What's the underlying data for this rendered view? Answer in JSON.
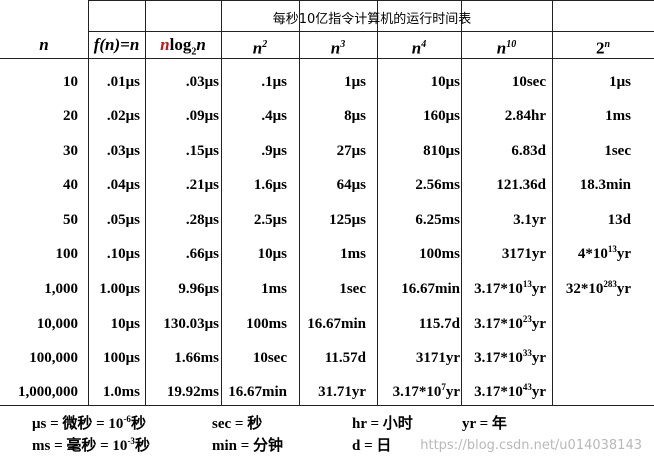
{
  "title": "每秒10亿指令计算机的运行时间表",
  "headers": {
    "n": "n",
    "f_prefix": "f(n)=n",
    "nlog_n1": "n",
    "nlog_mid": "log",
    "nlog_sub": "2",
    "nlog_n2": "n",
    "n2_base": "n",
    "n2_exp": "2",
    "n3_base": "n",
    "n3_exp": "3",
    "n4_base": "n",
    "n4_exp": "4",
    "n10_base": "n",
    "n10_exp": "10",
    "exp_base": "2",
    "exp_exp": "n"
  },
  "rows": [
    {
      "n": "10",
      "c1": ".01μs",
      "c2": ".03μs",
      "c3": ".1μs",
      "c4": "1μs",
      "c5": "10μs",
      "c6": "10sec",
      "c7": "1μs"
    },
    {
      "n": "20",
      "c1": ".02μs",
      "c2": ".09μs",
      "c3": ".4μs",
      "c4": "8μs",
      "c5": "160μs",
      "c6": "2.84hr",
      "c7": "1ms"
    },
    {
      "n": "30",
      "c1": ".03μs",
      "c2": ".15μs",
      "c3": ".9μs",
      "c4": "27μs",
      "c5": "810μs",
      "c6": "6.83d",
      "c7": "1sec"
    },
    {
      "n": "40",
      "c1": ".04μs",
      "c2": ".21μs",
      "c3": "1.6μs",
      "c4": "64μs",
      "c5": "2.56ms",
      "c6": "121.36d",
      "c7": "18.3min"
    },
    {
      "n": "50",
      "c1": ".05μs",
      "c2": ".28μs",
      "c3": "2.5μs",
      "c4": "125μs",
      "c5": "6.25ms",
      "c6": "3.1yr",
      "c7": "13d"
    },
    {
      "n": "100",
      "c1": ".10μs",
      "c2": ".66μs",
      "c3": "10μs",
      "c4": "1ms",
      "c5": "100ms",
      "c6": "3171yr",
      "c7": {
        "pre": "4*10",
        "sup": "13",
        "post": "yr"
      }
    },
    {
      "n": "1,000",
      "c1": "1.00μs",
      "c2": "9.96μs",
      "c3": "1ms",
      "c4": "1sec",
      "c5": "16.67min",
      "c6": {
        "pre": "3.17*10",
        "sup": "13",
        "post": "yr"
      },
      "c7": {
        "pre": "32*10",
        "sup": "283",
        "post": "yr"
      }
    },
    {
      "n": "10,000",
      "c1": "10μs",
      "c2": "130.03μs",
      "c3": "100ms",
      "c4": "16.67min",
      "c5": "115.7d",
      "c6": {
        "pre": "3.17*10",
        "sup": "23",
        "post": "yr"
      },
      "c7": ""
    },
    {
      "n": "100,000",
      "c1": "100μs",
      "c2": "1.66ms",
      "c3": "10sec",
      "c4": "11.57d",
      "c5": "3171yr",
      "c6": {
        "pre": "3.17*10",
        "sup": "33",
        "post": "yr"
      },
      "c7": ""
    },
    {
      "n": "1,000,000",
      "c1": "1.0ms",
      "c2": "19.92ms",
      "c3": "16.67min",
      "c4": "31.71yr",
      "c5": {
        "pre": "3.17*10",
        "sup": "7",
        "post": "yr"
      },
      "c6": {
        "pre": "3.17*10",
        "sup": "43",
        "post": "yr"
      },
      "c7": ""
    }
  ],
  "legend": {
    "us_pre": "μs = 微秒 = 10",
    "us_sup": "-6",
    "us_post": "秒",
    "ms_pre": "ms = 毫秒 = 10",
    "ms_sup": "-3",
    "ms_post": "秒",
    "sec": "sec = 秒",
    "min": "min = 分钟",
    "hr": "hr = 小时",
    "d": "d = 日",
    "yr": "yr = 年"
  },
  "watermark": "https://blog.csdn.net/u014038143"
}
